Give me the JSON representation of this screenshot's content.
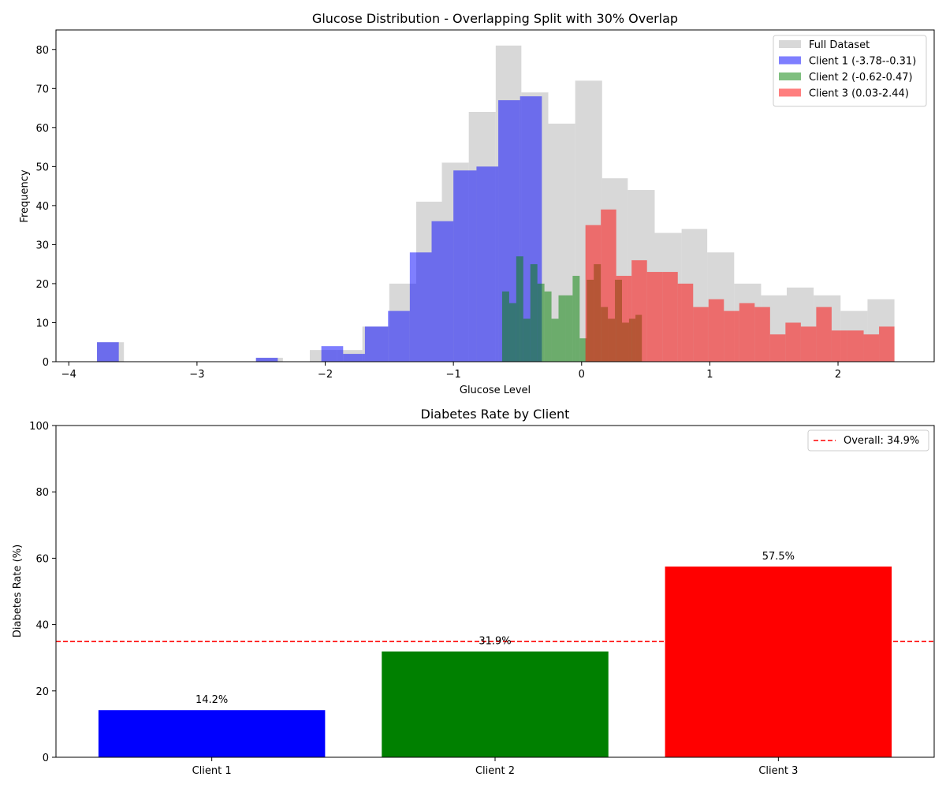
{
  "chart_data": [
    {
      "type": "histogram",
      "title": "Glucose Distribution - Overlapping Split with 30% Overlap",
      "xlabel": "Glucose Level",
      "ylabel": "Frequency",
      "xlim": [
        -4.1,
        2.75
      ],
      "ylim": [
        0,
        85
      ],
      "xticks": [
        -4,
        -3,
        -2,
        -1,
        0,
        1,
        2
      ],
      "xtick_labels": [
        "−4",
        "−3",
        "−2",
        "−1",
        "0",
        "1",
        "2"
      ],
      "yticks": [
        0,
        10,
        20,
        30,
        40,
        50,
        60,
        70,
        80
      ],
      "legend_position": "top-right",
      "grid": false,
      "series": [
        {
          "name": "Full Dataset",
          "color": "#c8c8c8",
          "bins": [
            {
              "x0": -3.78,
              "x1": -3.57,
              "count": 5
            },
            {
              "x0": -2.54,
              "x1": -2.33,
              "count": 1
            },
            {
              "x0": -2.12,
              "x1": -1.91,
              "count": 3
            },
            {
              "x0": -1.91,
              "x1": -1.71,
              "count": 3
            },
            {
              "x0": -1.71,
              "x1": -1.5,
              "count": 9
            },
            {
              "x0": -1.5,
              "x1": -1.29,
              "count": 20
            },
            {
              "x0": -1.29,
              "x1": -1.09,
              "count": 41
            },
            {
              "x0": -1.09,
              "x1": -0.88,
              "count": 51
            },
            {
              "x0": -0.88,
              "x1": -0.67,
              "count": 64
            },
            {
              "x0": -0.67,
              "x1": -0.47,
              "count": 81
            },
            {
              "x0": -0.47,
              "x1": -0.26,
              "count": 69
            },
            {
              "x0": -0.26,
              "x1": -0.05,
              "count": 61
            },
            {
              "x0": -0.05,
              "x1": 0.16,
              "count": 72
            },
            {
              "x0": 0.16,
              "x1": 0.36,
              "count": 47
            },
            {
              "x0": 0.36,
              "x1": 0.57,
              "count": 44
            },
            {
              "x0": 0.57,
              "x1": 0.78,
              "count": 33
            },
            {
              "x0": 0.78,
              "x1": 0.98,
              "count": 34
            },
            {
              "x0": 0.98,
              "x1": 1.19,
              "count": 28
            },
            {
              "x0": 1.19,
              "x1": 1.4,
              "count": 20
            },
            {
              "x0": 1.4,
              "x1": 1.6,
              "count": 17
            },
            {
              "x0": 1.6,
              "x1": 1.81,
              "count": 19
            },
            {
              "x0": 1.81,
              "x1": 2.02,
              "count": 17
            },
            {
              "x0": 2.02,
              "x1": 2.23,
              "count": 13
            },
            {
              "x0": 2.23,
              "x1": 2.44,
              "count": 16
            }
          ]
        },
        {
          "name": "Client 1 (-3.78--0.31)",
          "color": "#0000ff",
          "bins": [
            {
              "x0": -3.78,
              "x1": -3.61,
              "count": 5
            },
            {
              "x0": -2.54,
              "x1": -2.37,
              "count": 1
            },
            {
              "x0": -2.03,
              "x1": -1.86,
              "count": 4
            },
            {
              "x0": -1.86,
              "x1": -1.69,
              "count": 2
            },
            {
              "x0": -1.69,
              "x1": -1.51,
              "count": 9
            },
            {
              "x0": -1.51,
              "x1": -1.34,
              "count": 13
            },
            {
              "x0": -1.34,
              "x1": -1.17,
              "count": 28
            },
            {
              "x0": -1.17,
              "x1": -1.0,
              "count": 36
            },
            {
              "x0": -1.0,
              "x1": -0.82,
              "count": 49
            },
            {
              "x0": -0.82,
              "x1": -0.65,
              "count": 50
            },
            {
              "x0": -0.65,
              "x1": -0.48,
              "count": 67
            },
            {
              "x0": -0.48,
              "x1": -0.31,
              "count": 68
            }
          ]
        },
        {
          "name": "Client 2 (-0.62-0.47)",
          "color": "#008000",
          "bins": [
            {
              "x0": -0.62,
              "x1": -0.565,
              "count": 18
            },
            {
              "x0": -0.565,
              "x1": -0.51,
              "count": 15
            },
            {
              "x0": -0.51,
              "x1": -0.455,
              "count": 27
            },
            {
              "x0": -0.455,
              "x1": -0.4,
              "count": 11
            },
            {
              "x0": -0.4,
              "x1": -0.345,
              "count": 25
            },
            {
              "x0": -0.345,
              "x1": -0.29,
              "count": 20
            },
            {
              "x0": -0.29,
              "x1": -0.235,
              "count": 18
            },
            {
              "x0": -0.235,
              "x1": -0.18,
              "count": 11
            },
            {
              "x0": -0.18,
              "x1": -0.125,
              "count": 17
            },
            {
              "x0": -0.125,
              "x1": -0.07,
              "count": 17
            },
            {
              "x0": -0.07,
              "x1": -0.015,
              "count": 22
            },
            {
              "x0": -0.015,
              "x1": 0.04,
              "count": 6
            },
            {
              "x0": 0.04,
              "x1": 0.095,
              "count": 21
            },
            {
              "x0": 0.095,
              "x1": 0.15,
              "count": 25
            },
            {
              "x0": 0.15,
              "x1": 0.205,
              "count": 14
            },
            {
              "x0": 0.205,
              "x1": 0.26,
              "count": 11
            },
            {
              "x0": 0.26,
              "x1": 0.315,
              "count": 21
            },
            {
              "x0": 0.315,
              "x1": 0.37,
              "count": 10
            },
            {
              "x0": 0.37,
              "x1": 0.42,
              "count": 11
            },
            {
              "x0": 0.42,
              "x1": 0.47,
              "count": 12
            }
          ]
        },
        {
          "name": "Client 3 (0.03-2.44)",
          "color": "#ff0000",
          "bins": [
            {
              "x0": 0.03,
              "x1": 0.15,
              "count": 35
            },
            {
              "x0": 0.15,
              "x1": 0.27,
              "count": 39
            },
            {
              "x0": 0.27,
              "x1": 0.39,
              "count": 22
            },
            {
              "x0": 0.39,
              "x1": 0.51,
              "count": 26
            },
            {
              "x0": 0.51,
              "x1": 0.63,
              "count": 23
            },
            {
              "x0": 0.63,
              "x1": 0.75,
              "count": 23
            },
            {
              "x0": 0.75,
              "x1": 0.87,
              "count": 20
            },
            {
              "x0": 0.87,
              "x1": 0.99,
              "count": 14
            },
            {
              "x0": 0.99,
              "x1": 1.11,
              "count": 16
            },
            {
              "x0": 1.11,
              "x1": 1.23,
              "count": 13
            },
            {
              "x0": 1.23,
              "x1": 1.35,
              "count": 15
            },
            {
              "x0": 1.35,
              "x1": 1.47,
              "count": 14
            },
            {
              "x0": 1.47,
              "x1": 1.59,
              "count": 7
            },
            {
              "x0": 1.59,
              "x1": 1.71,
              "count": 10
            },
            {
              "x0": 1.71,
              "x1": 1.83,
              "count": 9
            },
            {
              "x0": 1.83,
              "x1": 1.95,
              "count": 14
            },
            {
              "x0": 1.95,
              "x1": 2.07,
              "count": 8
            },
            {
              "x0": 2.07,
              "x1": 2.2,
              "count": 8
            },
            {
              "x0": 2.2,
              "x1": 2.32,
              "count": 7
            },
            {
              "x0": 2.32,
              "x1": 2.44,
              "count": 9
            }
          ]
        }
      ]
    },
    {
      "type": "bar",
      "title": "Diabetes Rate by Client",
      "xlabel": "",
      "ylabel": "Diabetes Rate (%)",
      "ylim": [
        0,
        100
      ],
      "yticks": [
        0,
        20,
        40,
        60,
        80,
        100
      ],
      "categories": [
        "Client 1",
        "Client 2",
        "Client 3"
      ],
      "values": [
        14.2,
        31.9,
        57.5
      ],
      "value_labels": [
        "14.2%",
        "31.9%",
        "57.5%"
      ],
      "colors": [
        "#0000ff",
        "#008000",
        "#ff0000"
      ],
      "reference_line": {
        "value": 34.9,
        "label": "Overall: 34.9%",
        "color": "#ff0000",
        "style": "dashed"
      },
      "legend_position": "top-right",
      "grid": false
    }
  ]
}
